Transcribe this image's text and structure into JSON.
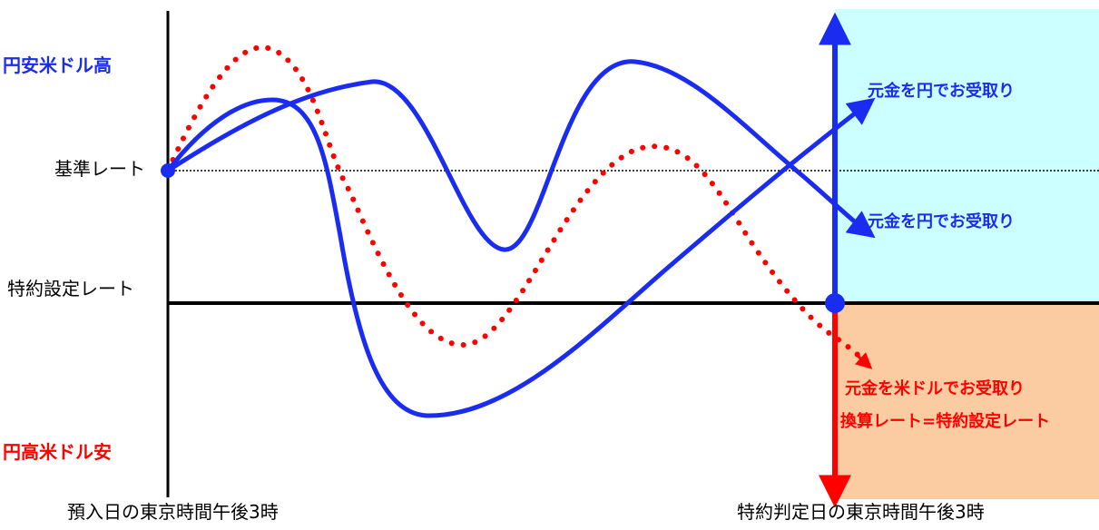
{
  "labels": {
    "y_top": "円安米ドル高",
    "y_bottom": "円高米ドル安",
    "base_rate": "基準レート",
    "strike_rate": "特約設定レート",
    "x_start": "預入日の東京時間午後3時",
    "x_end": "特約判定日の東京時間午後3時"
  },
  "outcomes": {
    "yen_upper": "元金を円でお受取り",
    "yen_middle": "元金を円でお受取り",
    "usd_line1": "元金を米ドルでお受取り",
    "usd_line2": "換算レート=特約設定レート"
  },
  "colors": {
    "blue": "#1a2cf0",
    "red": "#ff0000",
    "yen_zone": "#ccffff",
    "usd_zone": "#fbcba2"
  }
}
